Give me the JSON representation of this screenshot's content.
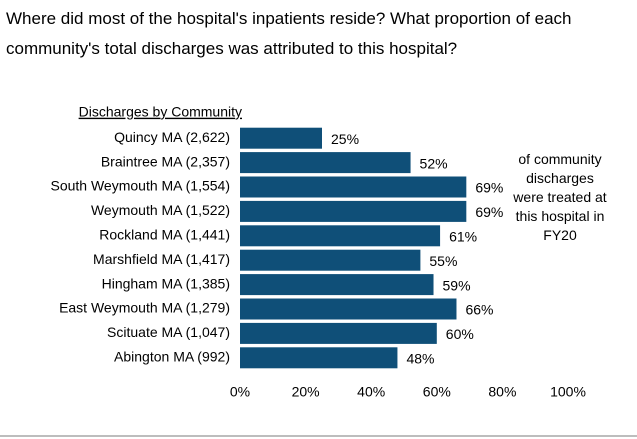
{
  "chart_data": {
    "type": "bar",
    "orientation": "horizontal",
    "title": "Where did most of the hospital's inpatients reside? What proportion of each community's total discharges was attributed to this hospital?",
    "category_header": "Discharges by Community",
    "annotation": "of community discharges were treated at this hospital in FY20",
    "categories": [
      "Quincy MA (2,622)",
      "Braintree MA (2,357)",
      "South Weymouth MA (1,554)",
      "Weymouth MA (1,522)",
      "Rockland MA (1,441)",
      "Marshfield MA (1,417)",
      "Hingham MA (1,385)",
      "East Weymouth MA (1,279)",
      "Scituate MA (1,047)",
      "Abington MA (992)"
    ],
    "values": [
      25,
      52,
      69,
      69,
      61,
      55,
      59,
      66,
      60,
      48
    ],
    "value_labels": [
      "25%",
      "52%",
      "69%",
      "69%",
      "61%",
      "55%",
      "59%",
      "66%",
      "60%",
      "48%"
    ],
    "color": "#0f4f78",
    "xlim": [
      0,
      100
    ],
    "xticks": [
      {
        "value": 0,
        "label": "0%"
      },
      {
        "value": 20,
        "label": "20%"
      },
      {
        "value": 40,
        "label": "40%"
      },
      {
        "value": 60,
        "label": "60%"
      },
      {
        "value": 80,
        "label": "80%"
      },
      {
        "value": 100,
        "label": "100%"
      }
    ],
    "grid": false
  }
}
